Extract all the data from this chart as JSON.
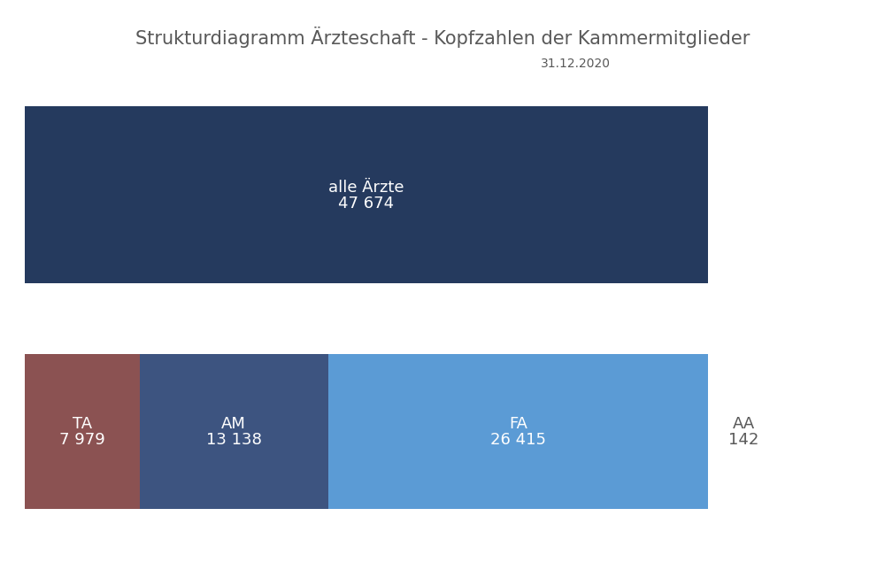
{
  "title": "Strukturdiagramm Ärzteschaft - Kopfzahlen der Kammermitglieder",
  "subtitle": "31.12.2020",
  "title_color": "#595959",
  "subtitle_color": "#595959",
  "background_color": "#ffffff",
  "top_bar": {
    "label": "alle Ärzte",
    "value": "47 674",
    "color": "#253a5e",
    "text_color": "#ffffff"
  },
  "bottom_bars": [
    {
      "label": "TA",
      "value": "7 979",
      "color": "#8b5252",
      "text_color": "#ffffff",
      "inside": true
    },
    {
      "label": "AM",
      "value": "13 138",
      "color": "#3d5480",
      "text_color": "#ffffff",
      "inside": true
    },
    {
      "label": "FA",
      "value": "26 415",
      "color": "#5b9bd5",
      "text_color": "#ffffff",
      "inside": true
    },
    {
      "label": "AA",
      "value": "142",
      "color": "#ffffff",
      "text_color": "#595959",
      "inside": false
    }
  ],
  "ta": 7979,
  "am": 13138,
  "fa": 26415,
  "aa": 142,
  "label_fontsize": 13,
  "value_fontsize": 13,
  "title_fontsize": 15,
  "subtitle_fontsize": 10
}
